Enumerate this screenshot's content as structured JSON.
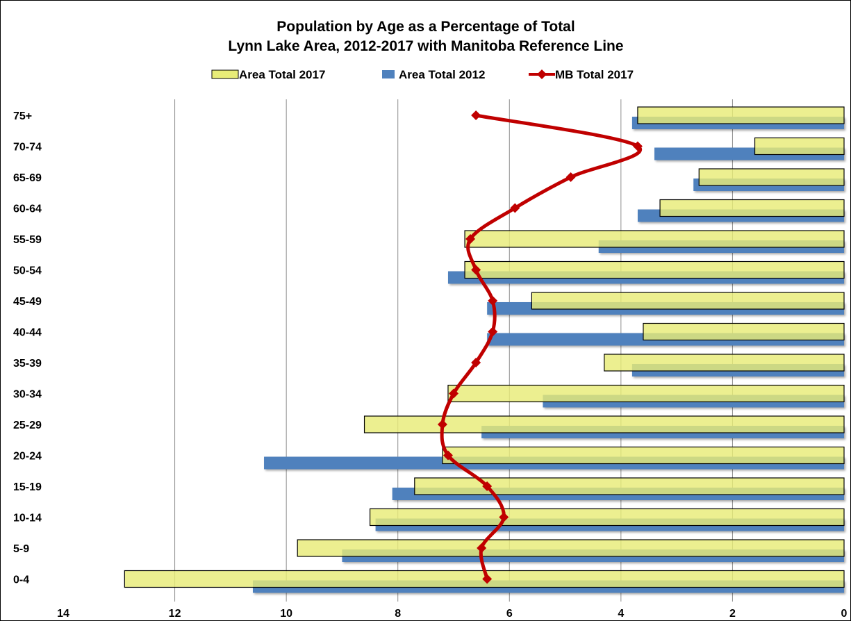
{
  "chart_data": {
    "type": "bar",
    "orientation": "horizontal",
    "title": "Population by Age as a Percentage of Total",
    "subtitle": "Lynn Lake Area,  2012-2017 with Manitoba Reference Line",
    "xlabel": "",
    "ylabel": "",
    "x_reversed": true,
    "xlim": [
      0,
      14
    ],
    "x_ticks": [
      14,
      12,
      10,
      8,
      6,
      4,
      2,
      0
    ],
    "grid": "vertical",
    "legend_position": "top",
    "categories": [
      "75+",
      "70-74",
      "65-69",
      "60-64",
      "55-59",
      "50-54",
      "45-49",
      "40-44",
      "35-39",
      "30-34",
      "25-29",
      "20-24",
      "15-19",
      "10-14",
      "5-9",
      "0-4"
    ],
    "series": [
      {
        "name": "Area Total 2017",
        "kind": "bar",
        "color": "#e8ec78",
        "values": [
          3.7,
          1.6,
          2.6,
          3.3,
          6.8,
          6.8,
          5.6,
          3.6,
          4.3,
          7.1,
          8.6,
          7.2,
          7.7,
          8.5,
          9.8,
          12.9
        ]
      },
      {
        "name": "Area Total 2012",
        "kind": "bar",
        "color": "#4f81bd",
        "values": [
          3.8,
          3.4,
          2.7,
          3.7,
          4.4,
          7.1,
          6.4,
          6.4,
          3.8,
          5.4,
          6.5,
          10.4,
          8.1,
          8.4,
          9.0,
          10.6
        ]
      },
      {
        "name": "MB Total 2017",
        "kind": "line",
        "color": "#c00000",
        "values": [
          6.6,
          3.7,
          4.9,
          5.9,
          6.7,
          6.6,
          6.3,
          6.3,
          6.6,
          7.0,
          7.2,
          7.1,
          6.4,
          6.1,
          6.5,
          6.4
        ]
      }
    ]
  }
}
